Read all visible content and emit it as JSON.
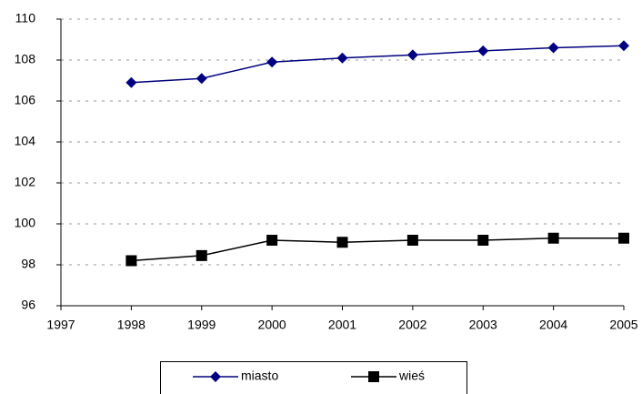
{
  "chart_data": {
    "type": "line",
    "x": [
      1998,
      1999,
      2000,
      2001,
      2002,
      2003,
      2004,
      2005
    ],
    "series": [
      {
        "name": "miasto",
        "color": "#000080",
        "marker": "diamond",
        "values": [
          106.9,
          107.1,
          107.9,
          108.1,
          108.25,
          108.45,
          108.6,
          108.7
        ]
      },
      {
        "name": "wieś",
        "color": "#000000",
        "marker": "square",
        "values": [
          98.2,
          98.45,
          99.2,
          99.1,
          99.2,
          99.2,
          99.3,
          99.3
        ]
      }
    ],
    "xlim": [
      1997,
      2005
    ],
    "xticks": [
      1997,
      1998,
      1999,
      2000,
      2001,
      2002,
      2003,
      2004,
      2005
    ],
    "ylim": [
      96,
      110
    ],
    "yticks": [
      96,
      98,
      100,
      102,
      104,
      106,
      108,
      110
    ],
    "grid": true,
    "legend": "bottom"
  }
}
